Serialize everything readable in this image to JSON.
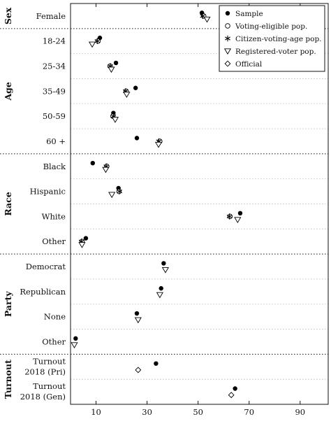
{
  "chart_data": {
    "type": "scatter",
    "title": "",
    "xlabel": "",
    "ylabel": "",
    "xlim": [
      0,
      101
    ],
    "xticks": [
      10,
      30,
      50,
      70,
      90
    ],
    "legend_position": "top-right",
    "series": [
      {
        "name": "Sample",
        "marker": "filled-circle"
      },
      {
        "name": "Voting-eligible pop.",
        "marker": "open-circle"
      },
      {
        "name": "Citizen-voting-age pop.",
        "marker": "asterisk"
      },
      {
        "name": "Registered-voter pop.",
        "marker": "triangle-down"
      },
      {
        "name": "Official",
        "marker": "diamond"
      }
    ],
    "groups": [
      {
        "label": "Sex",
        "rows": [
          {
            "label": "Female",
            "values": {
              "Sample": 51.5,
              "Voting-eligible pop.": 52.2,
              "Citizen-voting-age pop.": 51.8,
              "Registered-voter pop.": 53.5
            }
          }
        ]
      },
      {
        "label": "Age",
        "rows": [
          {
            "label": "18-24",
            "values": {
              "Sample": 11.5,
              "Voting-eligible pop.": 10.8,
              "Citizen-voting-age pop.": 10.5,
              "Registered-voter pop.": 8.5
            }
          },
          {
            "label": "25-34",
            "values": {
              "Sample": 17.8,
              "Voting-eligible pop.": 15.5,
              "Citizen-voting-age pop.": 15.6,
              "Registered-voter pop.": 16.0
            }
          },
          {
            "label": "35-49",
            "values": {
              "Sample": 25.5,
              "Voting-eligible pop.": 21.8,
              "Citizen-voting-age pop.": 21.6,
              "Registered-voter pop.": 22.0
            }
          },
          {
            "label": "50-59",
            "values": {
              "Sample": 16.8,
              "Voting-eligible pop.": 16.6,
              "Citizen-voting-age pop.": 16.8,
              "Registered-voter pop.": 17.5
            }
          },
          {
            "label": "60 +",
            "values": {
              "Sample": 26.0,
              "Voting-eligible pop.": 35.0,
              "Citizen-voting-age pop.": 34.6,
              "Registered-voter pop.": 34.5
            }
          }
        ]
      },
      {
        "label": "Race",
        "rows": [
          {
            "label": "Black",
            "values": {
              "Sample": 8.7,
              "Voting-eligible pop.": 14.2,
              "Citizen-voting-age pop.": 14.0,
              "Registered-voter pop.": 13.8
            }
          },
          {
            "label": "Hispanic",
            "values": {
              "Sample": 18.8,
              "Voting-eligible pop.": 19.0,
              "Citizen-voting-age pop.": 19.2,
              "Registered-voter pop.": 16.2
            }
          },
          {
            "label": "White",
            "values": {
              "Sample": 66.5,
              "Voting-eligible pop.": 62.5,
              "Citizen-voting-age pop.": 62.3,
              "Registered-voter pop.": 65.5
            }
          },
          {
            "label": "Other",
            "values": {
              "Sample": 6.0,
              "Voting-eligible pop.": 4.5,
              "Citizen-voting-age pop.": 4.3,
              "Registered-voter pop.": 4.5
            }
          }
        ]
      },
      {
        "label": "Party",
        "rows": [
          {
            "label": "Democrat",
            "values": {
              "Sample": 36.5,
              "Registered-voter pop.": 37.2
            }
          },
          {
            "label": "Republican",
            "values": {
              "Sample": 35.5,
              "Registered-voter pop.": 35.0
            }
          },
          {
            "label": "None",
            "values": {
              "Sample": 26.0,
              "Registered-voter pop.": 26.5
            }
          },
          {
            "label": "Other",
            "values": {
              "Sample": 2.0,
              "Registered-voter pop.": 1.5
            }
          }
        ]
      },
      {
        "label": "Turnout",
        "rows": [
          {
            "label": [
              "Turnout",
              "2018 (Pri)"
            ],
            "values": {
              "Sample": 33.5,
              "Official": 26.5
            }
          },
          {
            "label": [
              "Turnout",
              "2018 (Gen)"
            ],
            "values": {
              "Sample": 64.5,
              "Official": 63.0
            }
          }
        ]
      }
    ]
  }
}
